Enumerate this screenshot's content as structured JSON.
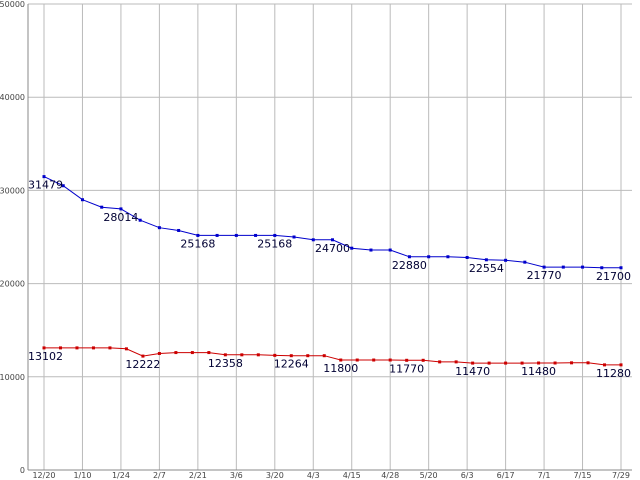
{
  "chart_data": {
    "type": "line",
    "title": "",
    "xlabel": "",
    "ylabel": "",
    "ylim": [
      0,
      50000
    ],
    "y_ticks": [
      0,
      10000,
      20000,
      30000,
      40000,
      50000
    ],
    "x_ticks": [
      "12/20",
      "1/10",
      "1/24",
      "2/7",
      "2/21",
      "3/6",
      "3/20",
      "4/3",
      "4/15",
      "4/28",
      "5/20",
      "6/3",
      "6/17",
      "7/1",
      "7/15",
      "7/29"
    ],
    "grid": true,
    "legend": "none",
    "series": [
      {
        "color": "#0000cc",
        "values": [
          31479,
          30500,
          29000,
          28200,
          28014,
          26800,
          26000,
          25700,
          25168,
          25168,
          25168,
          25168,
          25168,
          25000,
          24700,
          24700,
          23800,
          23600,
          23600,
          22880,
          22880,
          22880,
          22800,
          22554,
          22500,
          22300,
          21770,
          21770,
          21770,
          21700,
          21700
        ],
        "labels": [
          {
            "i": 0,
            "text": "31479"
          },
          {
            "i": 4,
            "text": "28014"
          },
          {
            "i": 8,
            "text": "25168"
          },
          {
            "i": 12,
            "text": "25168"
          },
          {
            "i": 15,
            "text": "24700"
          },
          {
            "i": 19,
            "text": "22880"
          },
          {
            "i": 23,
            "text": "22554"
          },
          {
            "i": 26,
            "text": "21770"
          },
          {
            "i": 30,
            "text": "21700"
          }
        ]
      },
      {
        "color": "#cc0000",
        "values": [
          13102,
          13102,
          13102,
          13102,
          13102,
          13000,
          12222,
          12500,
          12600,
          12600,
          12600,
          12358,
          12358,
          12358,
          12300,
          12264,
          12264,
          12264,
          11800,
          11800,
          11800,
          11800,
          11770,
          11770,
          11600,
          11600,
          11470,
          11470,
          11470,
          11470,
          11480,
          11480,
          11500,
          11500,
          11280,
          11280
        ],
        "labels": [
          {
            "i": 0,
            "text": "13102"
          },
          {
            "i": 6,
            "text": "12222"
          },
          {
            "i": 11,
            "text": "12358"
          },
          {
            "i": 15,
            "text": "12264"
          },
          {
            "i": 18,
            "text": "11800"
          },
          {
            "i": 22,
            "text": "11770"
          },
          {
            "i": 26,
            "text": "11470"
          },
          {
            "i": 30,
            "text": "11480"
          },
          {
            "i": 35,
            "text": "11280"
          }
        ]
      }
    ]
  }
}
